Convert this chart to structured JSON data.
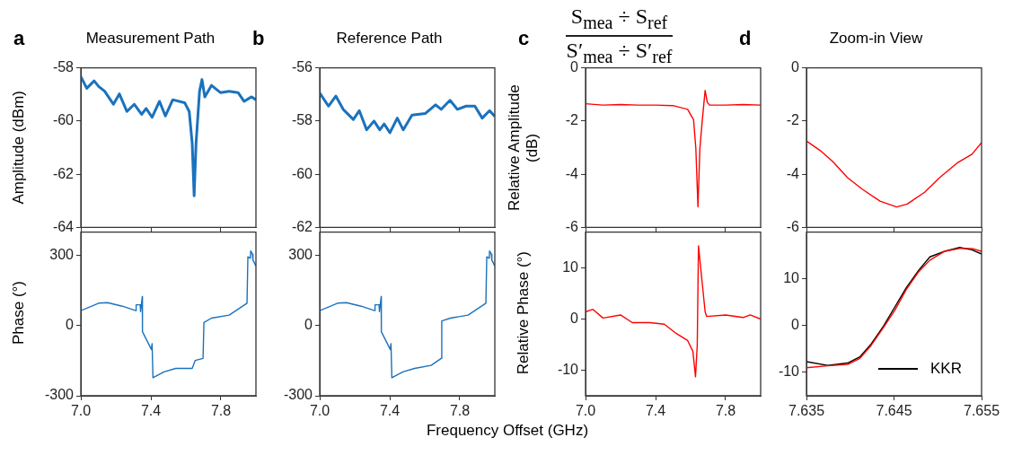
{
  "chart_data": [
    {
      "type": "line",
      "title": "Measurement Path",
      "annotations": [
        "a"
      ],
      "ylabel": "Amplitude (dBm)",
      "xlim": [
        7.0,
        8.0
      ],
      "xticks": [
        {
          "value": 7.0,
          "label": null
        },
        {
          "value": 7.4,
          "label": null
        },
        {
          "value": 7.8,
          "label": null
        }
      ],
      "ylim": [
        -64,
        -58
      ],
      "yticks": [
        -64,
        -62,
        -60,
        -58
      ],
      "tick_labels": "y",
      "series": [
        {
          "color": "#1a72bd",
          "x": [
            7.0,
            7.034,
            7.076,
            7.102,
            7.136,
            7.186,
            7.22,
            7.263,
            7.305,
            7.347,
            7.373,
            7.407,
            7.449,
            7.483,
            7.525,
            7.593,
            7.619,
            7.636,
            7.647,
            7.658,
            7.678,
            7.692,
            7.708,
            7.746,
            7.797,
            7.847,
            7.898,
            7.932,
            7.975,
            8.0
          ],
          "values": [
            -58.33,
            -58.77,
            -58.49,
            -58.7,
            -58.88,
            -59.37,
            -58.98,
            -59.64,
            -59.37,
            -59.75,
            -59.53,
            -59.86,
            -59.26,
            -59.81,
            -59.2,
            -59.31,
            -59.64,
            -60.84,
            -62.81,
            -60.84,
            -58.88,
            -58.44,
            -59.09,
            -58.66,
            -58.93,
            -58.88,
            -58.93,
            -59.26,
            -59.09,
            -59.2
          ]
        }
      ]
    },
    {
      "type": "line",
      "ylabel": "Phase (°)",
      "xlim": [
        7.0,
        8.0
      ],
      "xticks": [
        {
          "value": 7.0,
          "label": "7.0"
        },
        {
          "value": 7.4,
          "label": "7.4"
        },
        {
          "value": 7.8,
          "label": "7.8"
        }
      ],
      "ylim": [
        -300,
        400
      ],
      "yticks": [
        -300,
        0,
        300
      ],
      "series": [
        {
          "color": "#1a72bd",
          "x": [
            7.0,
            7.102,
            7.153,
            7.237,
            7.314,
            7.316,
            7.339,
            7.341,
            7.351,
            7.352,
            7.403,
            7.407,
            7.412,
            7.475,
            7.542,
            7.636,
            7.653,
            7.698,
            7.703,
            7.746,
            7.847,
            7.949,
            7.954,
            7.968,
            7.97,
            7.98,
            7.983,
            8.0
          ],
          "values": [
            64,
            96,
            98,
            83,
            64,
            89,
            89,
            60,
            124,
            -26,
            -102,
            -77,
            -223,
            -198,
            -183,
            -183,
            -149,
            -140,
            13,
            32,
            45,
            96,
            294,
            288,
            319,
            306,
            280,
            255
          ]
        }
      ]
    },
    {
      "type": "line",
      "title": "Reference Path",
      "annotations": [
        "b"
      ],
      "xlim": [
        7.0,
        8.0
      ],
      "xticks": [
        {
          "value": 7.0,
          "label": null
        },
        {
          "value": 7.4,
          "label": null
        },
        {
          "value": 7.8,
          "label": null
        }
      ],
      "ylim": [
        -62,
        -56
      ],
      "yticks": [
        -62,
        -60,
        -58,
        -56
      ],
      "tick_labels": "y",
      "series": [
        {
          "color": "#1a72bd",
          "x": [
            7.0,
            7.05,
            7.092,
            7.134,
            7.192,
            7.226,
            7.268,
            7.31,
            7.343,
            7.368,
            7.401,
            7.443,
            7.477,
            7.527,
            7.602,
            7.661,
            7.694,
            7.744,
            7.786,
            7.836,
            7.886,
            7.928,
            7.97,
            8.0
          ],
          "values": [
            -56.94,
            -57.44,
            -57.06,
            -57.56,
            -57.94,
            -57.61,
            -58.33,
            -58.0,
            -58.33,
            -58.11,
            -58.44,
            -57.89,
            -58.33,
            -57.78,
            -57.72,
            -57.39,
            -57.56,
            -57.22,
            -57.56,
            -57.44,
            -57.44,
            -57.89,
            -57.61,
            -57.83
          ]
        }
      ]
    },
    {
      "type": "line",
      "xlabel": "Frequency Offset (GHz)",
      "xlim": [
        7.0,
        8.0
      ],
      "xticks": [
        {
          "value": 7.0,
          "label": "7.0"
        },
        {
          "value": 7.4,
          "label": "7.4"
        },
        {
          "value": 7.8,
          "label": "7.8"
        }
      ],
      "ylim": [
        -300,
        400
      ],
      "yticks": [
        -300,
        0,
        300
      ],
      "series": [
        {
          "color": "#1a72bd",
          "x": [
            7.0,
            7.102,
            7.153,
            7.237,
            7.314,
            7.316,
            7.339,
            7.341,
            7.351,
            7.352,
            7.403,
            7.407,
            7.412,
            7.475,
            7.542,
            7.636,
            7.694,
            7.697,
            7.746,
            7.847,
            7.949,
            7.954,
            7.968,
            7.97,
            7.98,
            7.983,
            8.0
          ],
          "values": [
            64,
            96,
            98,
            83,
            64,
            89,
            89,
            60,
            124,
            -26,
            -102,
            -77,
            -223,
            -198,
            -183,
            -170,
            -140,
            20,
            32,
            45,
            96,
            294,
            288,
            319,
            306,
            280,
            255
          ]
        }
      ]
    },
    {
      "type": "line",
      "title": "S$_{mea}$ ÷ S$_{ref}$",
      "subtitle": "S′$_{mea}$ ÷ S′$_{ref}$",
      "annotations": [
        "c"
      ],
      "ylabel": "Relative Amplitude (dB)",
      "xlim": [
        7.0,
        8.0
      ],
      "xticks": [
        {
          "value": 7.0,
          "label": null
        },
        {
          "value": 7.4,
          "label": null
        },
        {
          "value": 7.8,
          "label": null
        }
      ],
      "ylim": [
        -6,
        0
      ],
      "yticks": [
        -6,
        -4,
        -2,
        0
      ],
      "tick_labels": "y",
      "series": [
        {
          "color": "#ff0000",
          "x": [
            7.0,
            7.1,
            7.2,
            7.3,
            7.4,
            7.5,
            7.583,
            7.617,
            7.63,
            7.642,
            7.653,
            7.667,
            7.683,
            7.695,
            7.708,
            7.8,
            7.9,
            8.0
          ],
          "values": [
            -1.35,
            -1.4,
            -1.38,
            -1.4,
            -1.4,
            -1.42,
            -1.56,
            -1.95,
            -3.04,
            -5.23,
            -3.04,
            -1.95,
            -0.85,
            -1.29,
            -1.4,
            -1.4,
            -1.38,
            -1.4
          ]
        }
      ]
    },
    {
      "type": "line",
      "ylabel": "Relative Phase (°)",
      "xlim": [
        7.0,
        8.0
      ],
      "xticks": [
        {
          "value": 7.0,
          "label": "7.0"
        },
        {
          "value": 7.4,
          "label": "7.4"
        },
        {
          "value": 7.8,
          "label": "7.8"
        }
      ],
      "ylim": [
        -15,
        17
      ],
      "yticks": [
        -10,
        0,
        10
      ],
      "series": [
        {
          "color": "#ff0000",
          "x": [
            7.0,
            7.042,
            7.1,
            7.2,
            7.267,
            7.367,
            7.45,
            7.517,
            7.583,
            7.613,
            7.628,
            7.638,
            7.645,
            7.683,
            7.692,
            7.8,
            7.9,
            7.94,
            8.0
          ],
          "values": [
            1.4,
            1.9,
            0.2,
            0.8,
            -0.7,
            -0.7,
            -1.0,
            -2.8,
            -4.2,
            -6.3,
            -11.3,
            -5.1,
            14.3,
            1.4,
            0.5,
            0.8,
            0.3,
            0.8,
            0
          ]
        }
      ]
    },
    {
      "type": "line",
      "title": "Zoom-in View",
      "annotations": [
        "d"
      ],
      "xlim": [
        7.635,
        7.655
      ],
      "xticks": [
        {
          "value": 7.635,
          "label": null
        },
        {
          "value": 7.645,
          "label": null
        },
        {
          "value": 7.655,
          "label": null
        }
      ],
      "ylim": [
        -6,
        0
      ],
      "yticks": [
        -6,
        -4,
        -2,
        0
      ],
      "tick_labels": "y",
      "series": [
        {
          "color": "#ff0000",
          "x": [
            7.635,
            7.6367,
            7.638,
            7.6397,
            7.6414,
            7.6434,
            7.6453,
            7.6465,
            7.6485,
            7.6502,
            7.6522,
            7.6539,
            7.655
          ],
          "values": [
            -2.75,
            -3.14,
            -3.52,
            -4.13,
            -4.57,
            -5.01,
            -5.23,
            -5.12,
            -4.68,
            -4.13,
            -3.58,
            -3.25,
            -2.81
          ]
        }
      ]
    },
    {
      "type": "line",
      "xlim": [
        7.635,
        7.655
      ],
      "xticks": [
        7.635,
        7.645,
        7.655
      ],
      "ylim": [
        -15,
        20
      ],
      "yticks": [
        -10,
        0,
        10
      ],
      "legend": "bottom right",
      "series": [
        {
          "color": "#ff0000",
          "x": [
            7.635,
            7.6374,
            7.6397,
            7.6411,
            7.6424,
            7.6438,
            7.6451,
            7.6464,
            7.6478,
            7.6491,
            7.6508,
            7.6525,
            7.6539,
            7.655
          ],
          "values": [
            -9.0,
            -8.6,
            -8.3,
            -7.0,
            -4.2,
            -0.4,
            3.3,
            7.7,
            11.5,
            14.0,
            15.9,
            16.5,
            16.5,
            15.9
          ]
        },
        {
          "name": "KKR",
          "color": "#000000",
          "x": [
            7.635,
            7.6374,
            7.6397,
            7.6411,
            7.6424,
            7.6438,
            7.6451,
            7.6464,
            7.6478,
            7.6491,
            7.6508,
            7.6525,
            7.6539,
            7.655
          ],
          "values": [
            -7.7,
            -8.5,
            -8.0,
            -6.7,
            -3.9,
            -0.1,
            4.0,
            8.1,
            11.8,
            14.7,
            15.9,
            16.7,
            16.2,
            15.3
          ]
        }
      ]
    }
  ]
}
